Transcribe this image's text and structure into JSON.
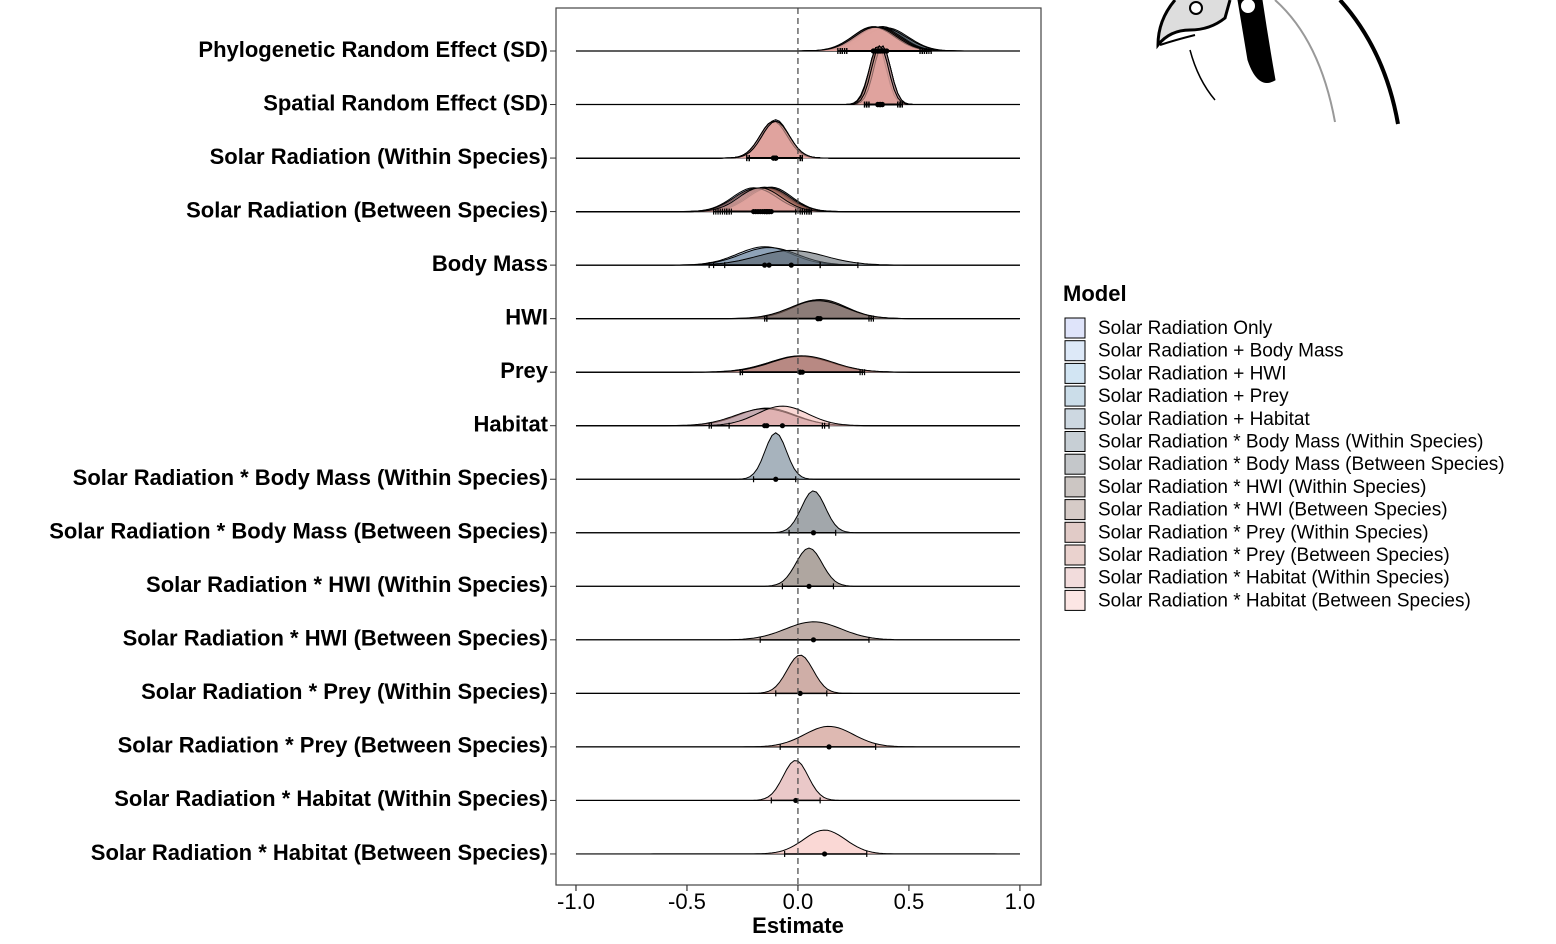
{
  "chart_data": {
    "type": "ridgeline",
    "x_label": "Estimate",
    "legend_title": "Model",
    "legend": "right",
    "reference_line": 0,
    "xlim": [
      -1.09,
      1.095
    ],
    "xticks": [
      {
        "value": -1,
        "label": "-1.0"
      },
      -0.5,
      {
        "value": 0,
        "label": "0.0"
      },
      0.5,
      {
        "value": 1,
        "label": "1.0"
      }
    ],
    "categories": [
      "Phylogenetic Random Effect (SD)",
      "Spatial Random Effect (SD)",
      "Solar Radiation (Within Species)",
      "Solar Radiation (Between Species)",
      "Body Mass",
      "HWI",
      "Prey",
      "Habitat",
      "Solar Radiation * Body Mass (Within Species)",
      "Solar Radiation * Body Mass (Between Species)",
      "Solar Radiation * HWI (Within Species)",
      "Solar Radiation * HWI (Between Species)",
      "Solar Radiation * Prey (Within Species)",
      "Solar Radiation * Prey (Between Species)",
      "Solar Radiation * Habitat (Within Species)",
      "Solar Radiation * Habitat (Between Species)"
    ],
    "series": [
      {
        "name": "Solar Radiation Only",
        "color": "#a3b1f0",
        "values": [
          0.36,
          0.37,
          -0.1,
          -0.15,
          null,
          null,
          null,
          null,
          null,
          null,
          null,
          null,
          null,
          null,
          null,
          null
        ],
        "lower": [
          0.2,
          0.31,
          -0.22,
          -0.32,
          null,
          null,
          null,
          null,
          null,
          null,
          null,
          null,
          null,
          null,
          null,
          null
        ],
        "upper": [
          0.57,
          0.46,
          0.01,
          0.04,
          null,
          null,
          null,
          null,
          null,
          null,
          null,
          null,
          null,
          null,
          null,
          null
        ]
      },
      {
        "name": "Solar Radiation + Body Mass",
        "color": "#9dbfeb",
        "values": [
          0.38,
          0.36,
          -0.1,
          -0.2,
          -0.15,
          null,
          null,
          null,
          null,
          null,
          null,
          null,
          null,
          null,
          null,
          null
        ],
        "lower": [
          0.22,
          0.3,
          -0.22,
          -0.38,
          -0.38,
          null,
          null,
          null,
          null,
          null,
          null,
          null,
          null,
          null,
          null,
          null
        ],
        "upper": [
          0.58,
          0.45,
          0.02,
          -0.01,
          0.1,
          null,
          null,
          null,
          null,
          null,
          null,
          null,
          null,
          null,
          null,
          null
        ]
      },
      {
        "name": "Solar Radiation + HWI",
        "color": "#7fb5dc",
        "values": [
          0.35,
          0.37,
          -0.11,
          -0.14,
          null,
          0.09,
          null,
          null,
          null,
          null,
          null,
          null,
          null,
          null,
          null,
          null
        ],
        "lower": [
          0.18,
          0.31,
          -0.23,
          -0.32,
          null,
          -0.14,
          null,
          null,
          null,
          null,
          null,
          null,
          null,
          null,
          null,
          null
        ],
        "upper": [
          0.56,
          0.46,
          0.01,
          0.05,
          null,
          0.33,
          null,
          null,
          null,
          null,
          null,
          null,
          null,
          null,
          null,
          null
        ]
      },
      {
        "name": "Solar Radiation + Prey",
        "color": "#6a9fc0",
        "values": [
          0.37,
          0.36,
          -0.1,
          -0.13,
          null,
          null,
          0.01,
          null,
          null,
          null,
          null,
          null,
          null,
          null,
          null,
          null
        ],
        "lower": [
          0.2,
          0.3,
          -0.22,
          -0.31,
          null,
          null,
          -0.26,
          null,
          null,
          null,
          null,
          null,
          null,
          null,
          null,
          null
        ],
        "upper": [
          0.59,
          0.46,
          0.02,
          0.06,
          null,
          null,
          0.28,
          null,
          null,
          null,
          null,
          null,
          null,
          null,
          null,
          null
        ]
      },
      {
        "name": "Solar Radiation + Habitat",
        "color": "#6f8ea8",
        "values": [
          0.34,
          0.38,
          -0.11,
          -0.18,
          null,
          null,
          null,
          -0.14,
          null,
          null,
          null,
          null,
          null,
          null,
          null,
          null
        ],
        "lower": [
          0.19,
          0.32,
          -0.23,
          -0.36,
          null,
          null,
          null,
          -0.39,
          null,
          null,
          null,
          null,
          null,
          null,
          null,
          null
        ],
        "upper": [
          0.55,
          0.47,
          0.01,
          0.02,
          null,
          null,
          null,
          0.11,
          null,
          null,
          null,
          null,
          null,
          null,
          null,
          null
        ]
      },
      {
        "name": "Solar Radiation * Body Mass (Within Species)",
        "color": "#5f7586",
        "values": [
          0.4,
          0.37,
          -0.1,
          -0.16,
          -0.13,
          null,
          null,
          null,
          -0.1,
          null,
          null,
          null,
          null,
          null,
          null,
          null
        ],
        "lower": [
          0.22,
          0.31,
          -0.22,
          -0.34,
          -0.4,
          null,
          null,
          null,
          -0.2,
          null,
          null,
          null,
          null,
          null,
          null,
          null
        ],
        "upper": [
          0.6,
          0.46,
          0.02,
          0.03,
          0.1,
          null,
          null,
          null,
          -0.01,
          null,
          null,
          null,
          null,
          null,
          null,
          null
        ]
      },
      {
        "name": "Solar Radiation * Body Mass (Between Species)",
        "color": "#555f66",
        "values": [
          0.39,
          0.38,
          -0.1,
          -0.12,
          -0.03,
          null,
          null,
          null,
          null,
          0.07,
          null,
          null,
          null,
          null,
          null,
          null
        ],
        "lower": [
          0.21,
          0.32,
          -0.22,
          -0.3,
          -0.33,
          null,
          null,
          null,
          null,
          -0.04,
          null,
          null,
          null,
          null,
          null,
          null
        ],
        "upper": [
          0.6,
          0.47,
          0.02,
          0.06,
          0.27,
          null,
          null,
          null,
          null,
          0.17,
          null,
          null,
          null,
          null,
          null,
          null
        ]
      },
      {
        "name": "Solar Radiation * HWI (Within Species)",
        "color": "#6e5d52",
        "values": [
          0.36,
          0.37,
          -0.1,
          -0.14,
          null,
          0.1,
          null,
          null,
          null,
          null,
          0.05,
          null,
          null,
          null,
          null,
          null
        ],
        "lower": [
          0.2,
          0.31,
          -0.22,
          -0.32,
          null,
          -0.14,
          null,
          null,
          null,
          null,
          -0.07,
          null,
          null,
          null,
          null,
          null
        ],
        "upper": [
          0.57,
          0.46,
          0.02,
          0.05,
          null,
          0.32,
          null,
          null,
          null,
          null,
          0.16,
          null,
          null,
          null,
          null,
          null
        ]
      },
      {
        "name": "Solar Radiation * HWI (Between Species)",
        "color": "#8a6a5f",
        "values": [
          0.37,
          0.36,
          -0.11,
          -0.15,
          null,
          0.09,
          null,
          null,
          null,
          null,
          null,
          0.07,
          null,
          null,
          null,
          null
        ],
        "lower": [
          0.21,
          0.3,
          -0.23,
          -0.33,
          null,
          -0.15,
          null,
          null,
          null,
          null,
          null,
          -0.17,
          null,
          null,
          null,
          null
        ],
        "upper": [
          0.58,
          0.45,
          0.01,
          0.04,
          null,
          0.34,
          null,
          null,
          null,
          null,
          null,
          0.32,
          null,
          null,
          null,
          null
        ]
      },
      {
        "name": "Solar Radiation * Prey (Within Species)",
        "color": "#a86b5e",
        "values": [
          0.35,
          0.37,
          -0.1,
          -0.14,
          null,
          null,
          0.01,
          null,
          null,
          null,
          null,
          null,
          0.01,
          null,
          null,
          null
        ],
        "lower": [
          0.19,
          0.31,
          -0.22,
          -0.32,
          null,
          null,
          -0.26,
          null,
          null,
          null,
          null,
          null,
          -0.1,
          null,
          null,
          null
        ],
        "upper": [
          0.56,
          0.46,
          0.02,
          0.05,
          null,
          null,
          0.3,
          null,
          null,
          null,
          null,
          null,
          0.13,
          null,
          null,
          null
        ]
      },
      {
        "name": "Solar Radiation * Prey (Between Species)",
        "color": "#c27f73",
        "values": [
          0.36,
          0.36,
          -0.1,
          -0.13,
          null,
          null,
          0.02,
          null,
          null,
          null,
          null,
          null,
          null,
          0.14,
          null,
          null
        ],
        "lower": [
          0.2,
          0.3,
          -0.22,
          -0.31,
          null,
          null,
          -0.25,
          null,
          null,
          null,
          null,
          null,
          null,
          -0.08,
          null,
          null
        ],
        "upper": [
          0.57,
          0.45,
          0.02,
          0.06,
          null,
          null,
          0.29,
          null,
          null,
          null,
          null,
          null,
          null,
          0.35,
          null,
          null
        ]
      },
      {
        "name": "Solar Radiation * Habitat (Within Species)",
        "color": "#d99b9b",
        "values": [
          0.34,
          0.38,
          -0.11,
          -0.19,
          null,
          null,
          null,
          -0.15,
          null,
          null,
          null,
          null,
          null,
          null,
          -0.01,
          null
        ],
        "lower": [
          0.18,
          0.32,
          -0.23,
          -0.37,
          null,
          null,
          null,
          -0.4,
          null,
          null,
          null,
          null,
          null,
          null,
          -0.12,
          null
        ],
        "upper": [
          0.55,
          0.47,
          0.01,
          0.01,
          null,
          null,
          null,
          0.12,
          null,
          null,
          null,
          null,
          null,
          null,
          0.1,
          null
        ]
      },
      {
        "name": "Solar Radiation * Habitat (Between Species)",
        "color": "#f5b8b3",
        "values": [
          0.35,
          0.37,
          -0.1,
          -0.17,
          null,
          null,
          null,
          -0.07,
          null,
          null,
          null,
          null,
          null,
          null,
          null,
          0.12
        ],
        "lower": [
          0.19,
          0.31,
          -0.22,
          -0.35,
          null,
          null,
          null,
          -0.31,
          null,
          null,
          null,
          null,
          null,
          null,
          null,
          -0.06
        ],
        "upper": [
          0.56,
          0.46,
          0.02,
          0.02,
          null,
          null,
          null,
          0.14,
          null,
          null,
          null,
          null,
          null,
          null,
          null,
          0.31
        ]
      }
    ]
  }
}
